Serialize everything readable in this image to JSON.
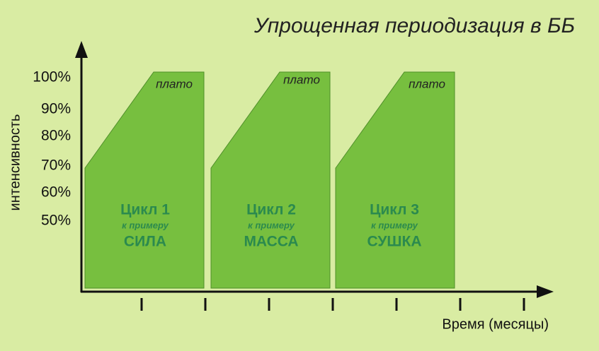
{
  "title": "Упрощенная периодизация в ББ",
  "y_axis": {
    "label": "интенсивность",
    "ticks": [
      "100%",
      "90%",
      "80%",
      "70%",
      "60%",
      "50%"
    ]
  },
  "x_axis": {
    "label": "Время (месяцы)"
  },
  "cycles": [
    {
      "plateau": "плато",
      "name": "Цикл 1",
      "note": "к примеру",
      "goal": "СИЛА"
    },
    {
      "plateau": "плато",
      "name": "Цикл 2",
      "note": "к примеру",
      "goal": "МАССА"
    },
    {
      "plateau": "плато",
      "name": "Цикл 3",
      "note": "к примеру",
      "goal": "СУШКА"
    }
  ]
}
